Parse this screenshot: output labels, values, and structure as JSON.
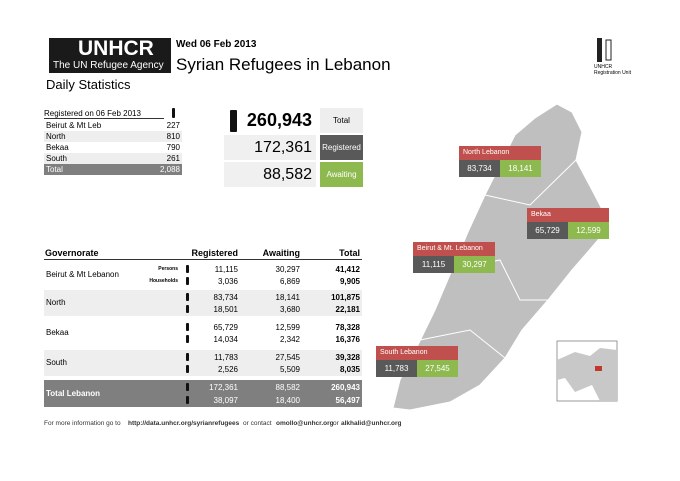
{
  "header": {
    "logo": "UNHCR",
    "logo_tagline": "The UN Refugee Agency",
    "date": "Wed 06 Feb 2013",
    "title": "Syrian Refugees in Lebanon",
    "subtitle": "Daily Statistics",
    "unit": "UNHCR",
    "unit_sub": "Registration Unit"
  },
  "daily": {
    "heading": "Registered on 06 Feb 2013",
    "rows": [
      [
        "Beirut & Mt Leb",
        "227"
      ],
      [
        "North",
        "810"
      ],
      [
        "Bekaa",
        "790"
      ],
      [
        "South",
        "261"
      ]
    ],
    "total": [
      "Total",
      "2,088"
    ]
  },
  "summary": [
    {
      "value": "260,943",
      "label": "Total"
    },
    {
      "value": "172,361",
      "label": "Registered"
    },
    {
      "value": "88,582",
      "label": "Awaiting"
    }
  ],
  "map": {
    "regions": [
      {
        "name": "North Lebanon",
        "registered": "83,734",
        "awaiting": "18,141"
      },
      {
        "name": "Bekaa",
        "registered": "65,729",
        "awaiting": "12,599"
      },
      {
        "name": "Beirut & Mt. Lebanon",
        "registered": "11,115",
        "awaiting": "30,297"
      },
      {
        "name": "South Lebanon",
        "registered": "11,783",
        "awaiting": "27,545"
      }
    ]
  },
  "table": {
    "headers": [
      "Governorate",
      "Registered",
      "Awaiting",
      "Total"
    ],
    "row_labels": [
      "Persons",
      "Households"
    ],
    "rows": [
      {
        "name": "Beirut & Mt Lebanon",
        "persons": [
          "11,115",
          "30,297",
          "41,412"
        ],
        "households": [
          "3,036",
          "6,869",
          "9,905"
        ]
      },
      {
        "name": "North",
        "persons": [
          "83,734",
          "18,141",
          "101,875"
        ],
        "households": [
          "18,501",
          "3,680",
          "22,181"
        ]
      },
      {
        "name": "Bekaa",
        "persons": [
          "65,729",
          "12,599",
          "78,328"
        ],
        "households": [
          "14,034",
          "2,342",
          "16,376"
        ]
      },
      {
        "name": "South",
        "persons": [
          "11,783",
          "27,545",
          "39,328"
        ],
        "households": [
          "2,526",
          "5,509",
          "8,035"
        ]
      }
    ],
    "total": {
      "name": "Total Lebanon",
      "persons": [
        "172,361",
        "88,582",
        "260,943"
      ],
      "households": [
        "38,097",
        "18,400",
        "56,497"
      ]
    }
  },
  "footer": {
    "lead": "For more information go to",
    "url": "http://data.unhcr.org/syrianrefugees",
    "contact": "or contact",
    "email1": "omollo@unhcr.org",
    "or": "or",
    "email2": "alkhalid@unhcr.org"
  }
}
